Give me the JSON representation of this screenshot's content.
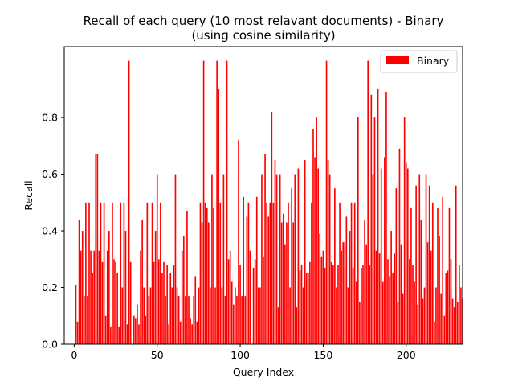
{
  "chart_data": {
    "type": "bar",
    "title": "Recall of each query (10 most relavant documents) - Binary",
    "subtitle": "(using cosine similarity)",
    "xlabel": "Query Index",
    "ylabel": "Recall",
    "xlim": [
      -6,
      234
    ],
    "ylim": [
      0,
      1.05
    ],
    "xticks": [
      0,
      50,
      100,
      150,
      200
    ],
    "yticks": [
      0.0,
      0.2,
      0.4,
      0.6,
      0.8
    ],
    "ytick_labels": [
      "0.0",
      "0.2",
      "0.4",
      "0.6",
      "0.8"
    ],
    "grid": false,
    "legend_position": "top-right",
    "series": [
      {
        "name": "Binary",
        "color": "#ff0000",
        "x_start": 1,
        "values": [
          0.21,
          0.08,
          0.44,
          0.33,
          0.4,
          0.17,
          0.5,
          0.17,
          0.5,
          0.33,
          0.25,
          0.33,
          0.67,
          0.67,
          0.33,
          0.5,
          0.29,
          0.5,
          0.1,
          0.33,
          0.4,
          0.06,
          0.5,
          0.3,
          0.29,
          0.25,
          0.06,
          0.5,
          0.2,
          0.5,
          0.4,
          0.07,
          1.0,
          0.29,
          0.0,
          0.1,
          0.09,
          0.14,
          0.07,
          0.33,
          0.44,
          0.2,
          0.1,
          0.5,
          0.17,
          0.2,
          0.5,
          0.29,
          0.4,
          0.6,
          0.3,
          0.5,
          0.25,
          0.29,
          0.17,
          0.28,
          0.07,
          0.25,
          0.2,
          0.28,
          0.6,
          0.2,
          0.17,
          0.08,
          0.33,
          0.38,
          0.17,
          0.47,
          0.17,
          0.09,
          0.07,
          0.17,
          0.24,
          0.08,
          0.2,
          0.5,
          0.43,
          1.0,
          0.5,
          0.48,
          0.43,
          0.2,
          0.6,
          0.48,
          0.2,
          1.0,
          0.9,
          0.5,
          0.2,
          0.6,
          0.17,
          1.0,
          0.3,
          0.33,
          0.22,
          0.14,
          0.2,
          0.17,
          0.72,
          0.28,
          0.17,
          0.52,
          0.17,
          0.45,
          0.5,
          0.33,
          0.0,
          0.27,
          0.3,
          0.52,
          0.2,
          0.2,
          0.6,
          0.31,
          0.67,
          0.5,
          0.45,
          0.5,
          0.82,
          0.5,
          0.65,
          0.6,
          0.13,
          0.6,
          0.43,
          0.46,
          0.35,
          0.43,
          0.5,
          0.2,
          0.55,
          0.43,
          0.6,
          0.13,
          0.62,
          0.26,
          0.28,
          0.2,
          0.65,
          0.25,
          0.25,
          0.29,
          0.5,
          0.76,
          0.66,
          0.8,
          0.62,
          0.39,
          0.31,
          0.33,
          0.27,
          1.0,
          0.65,
          0.6,
          0.29,
          0.28,
          0.55,
          0.2,
          0.28,
          0.5,
          0.33,
          0.36,
          0.36,
          0.45,
          0.2,
          0.4,
          0.5,
          0.27,
          0.5,
          0.22,
          0.8,
          0.15,
          0.27,
          0.28,
          0.44,
          0.35,
          1.0,
          0.28,
          0.88,
          0.6,
          0.8,
          0.33,
          0.9,
          0.32,
          0.62,
          0.22,
          0.66,
          0.89,
          0.3,
          0.24,
          0.4,
          0.25,
          0.32,
          0.55,
          0.15,
          0.69,
          0.35,
          0.18,
          0.8,
          0.64,
          0.62,
          0.3,
          0.48,
          0.28,
          0.22,
          0.56,
          0.14,
          0.6,
          0.44,
          0.16,
          0.2,
          0.6,
          0.36,
          0.56,
          0.33,
          0.5,
          0.08,
          0.2,
          0.48,
          0.38,
          0.18,
          0.52,
          0.1,
          0.25,
          0.26,
          0.48,
          0.3,
          0.16,
          0.13,
          0.56,
          0.15,
          0.28,
          0.2,
          0.16
        ]
      }
    ]
  }
}
